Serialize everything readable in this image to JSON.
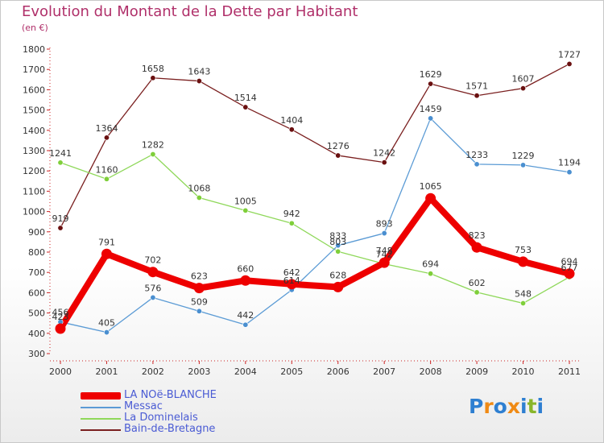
{
  "header": {
    "title": "Evolution du Montant de la Dette par Habitant",
    "subtitle": "(en €)"
  },
  "logo": {
    "text": "Proxiti",
    "letters": [
      "P",
      "r",
      "o",
      "x",
      "i",
      "t",
      "i"
    ],
    "colors": [
      "#2e7fd1",
      "#f08a14",
      "#2e7fd1",
      "#f08a14",
      "#2e7fd1",
      "#88b52a",
      "#2e7fd1"
    ]
  },
  "chart_data": {
    "type": "line",
    "x": [
      "2000",
      "2001",
      "2002",
      "2003",
      "2004",
      "2005",
      "2006",
      "2007",
      "2008",
      "2009",
      "2010",
      "2011"
    ],
    "ylim": [
      300,
      1800
    ],
    "yticks": [
      300,
      400,
      500,
      600,
      700,
      800,
      900,
      1000,
      1100,
      1200,
      1300,
      1400,
      1500,
      1600,
      1700,
      1800
    ],
    "grid": false,
    "legend_position": "bottom-left",
    "series": [
      {
        "name": "LA NOë-BLANCHE",
        "color": "#ee0000",
        "marker_color": "#ee0000",
        "values": [
          423,
          791,
          702,
          623,
          660,
          642,
          628,
          748,
          1065,
          823,
          753,
          694
        ],
        "labels": [
          "423",
          "791",
          "702",
          "623",
          "660",
          "642",
          "628",
          "748",
          "1065",
          "823",
          "753",
          "694"
        ],
        "thick": true
      },
      {
        "name": "Messac",
        "color": "#5b9bd5",
        "marker_color": "#4a8fd0",
        "values": [
          456,
          405,
          576,
          509,
          442,
          614,
          833,
          893,
          1459,
          1233,
          1229,
          1194
        ],
        "labels": [
          "456",
          "405",
          "576",
          "509",
          "442",
          "614",
          "833",
          "893",
          "1459",
          "1233",
          "1229",
          "1194"
        ],
        "thick": false
      },
      {
        "name": "La Dominelais",
        "color": "#8fd85a",
        "marker_color": "#7fcf3a",
        "values": [
          1241,
          1160,
          1282,
          1068,
          1005,
          942,
          803,
          742,
          694,
          602,
          548,
          677
        ],
        "labels": [
          "1241",
          "1160",
          "1282",
          "1068",
          "1005",
          "942",
          "803",
          "742",
          "694",
          "602",
          "548",
          "677"
        ],
        "thick": false
      },
      {
        "name": "Bain-de-Bretagne",
        "color": "#7a1f1f",
        "marker_color": "#6a1010",
        "values": [
          919,
          1364,
          1658,
          1643,
          1514,
          1404,
          1276,
          1242,
          1629,
          1571,
          1607,
          1727
        ],
        "labels": [
          "919",
          "1364",
          "1658",
          "1643",
          "1514",
          "1404",
          "1276",
          "1242",
          "1629",
          "1571",
          "1607",
          "1727"
        ],
        "thick": false
      }
    ]
  }
}
